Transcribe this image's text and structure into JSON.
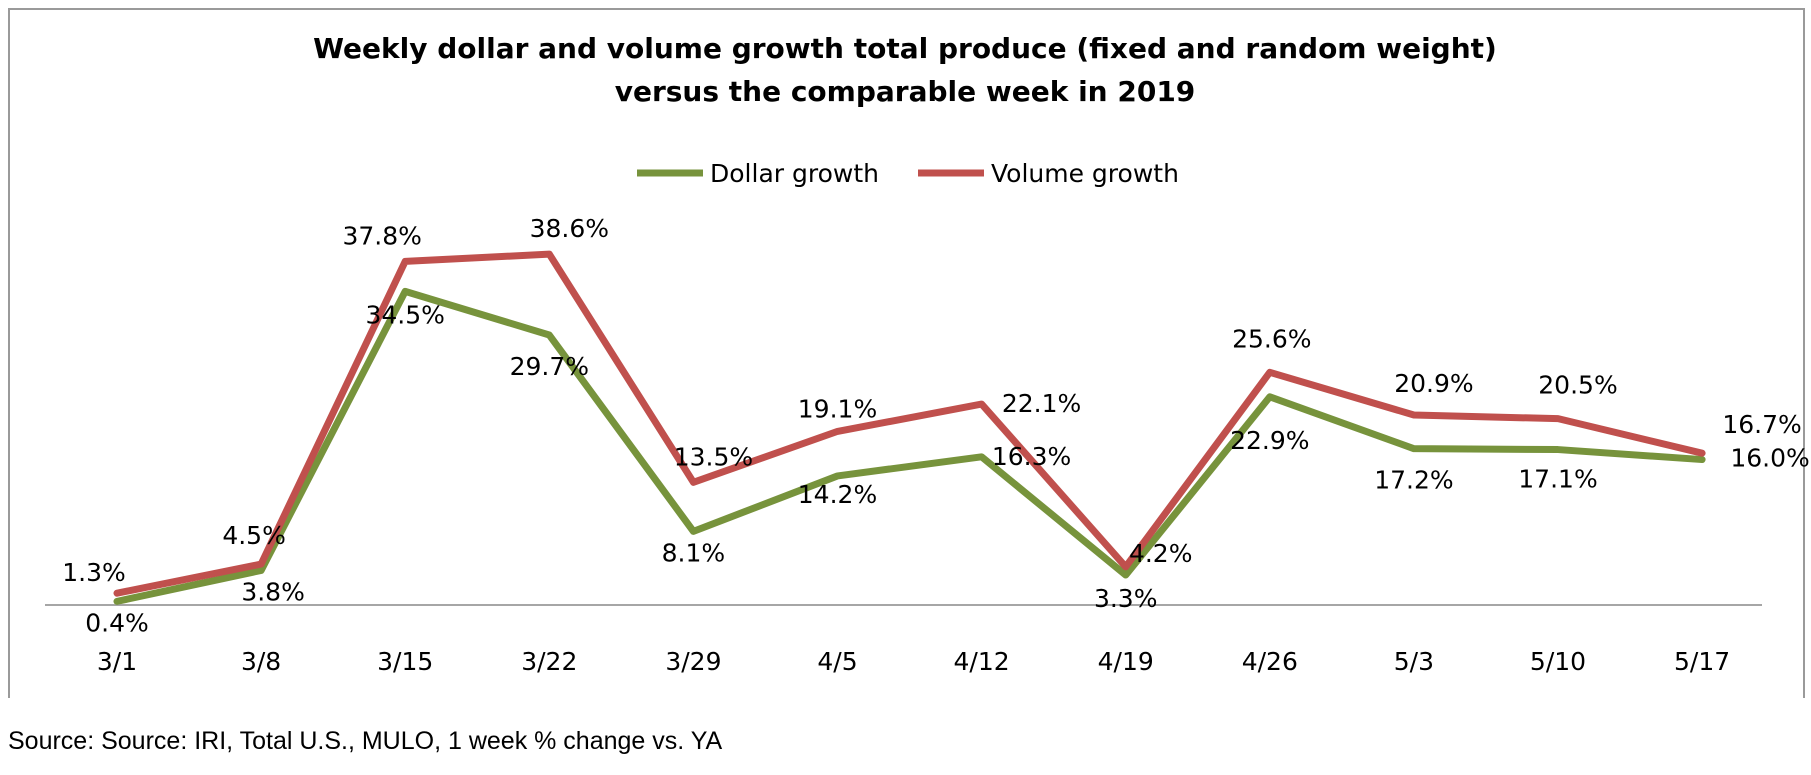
{
  "chart_data": {
    "type": "line",
    "title": "Weekly dollar and volume growth  total produce (fixed and random weight)",
    "subtitle": "versus the comparable week in 2019",
    "xlabel": "",
    "ylabel": "",
    "categories": [
      "3/1",
      "3/8",
      "3/15",
      "3/22",
      "3/29",
      "4/5",
      "4/12",
      "4/19",
      "4/26",
      "5/3",
      "5/10",
      "5/17"
    ],
    "ylim": [
      0,
      45
    ],
    "grid": false,
    "legend_position": "top-center",
    "series": [
      {
        "name": "Dollar growth",
        "color": "#77933c",
        "values": [
          0.4,
          3.8,
          34.5,
          29.7,
          8.1,
          14.2,
          16.3,
          3.3,
          22.9,
          17.2,
          17.1,
          16.0
        ],
        "labels": [
          "0.4%",
          "3.8%",
          "34.5%",
          "29.7%",
          "8.1%",
          "14.2%",
          "16.3%",
          "3.3%",
          "22.9%",
          "17.2%",
          "17.1%",
          "16.0%"
        ]
      },
      {
        "name": "Volume growth",
        "color": "#c0504d",
        "values": [
          1.3,
          4.5,
          37.8,
          38.6,
          13.5,
          19.1,
          22.1,
          4.2,
          25.6,
          20.9,
          20.5,
          16.7
        ],
        "labels": [
          "1.3%",
          "4.5%",
          "37.8%",
          "38.6%",
          "13.5%",
          "19.1%",
          "22.1%",
          "4.2%",
          "25.6%",
          "20.9%",
          "20.5%",
          "16.7%"
        ]
      }
    ]
  },
  "source": "Source: Source: IRI, Total U.S., MULO, 1 week % change vs. YA",
  "colors": {
    "axis": "#a6a6a6",
    "frame": "#9a9a9a"
  }
}
